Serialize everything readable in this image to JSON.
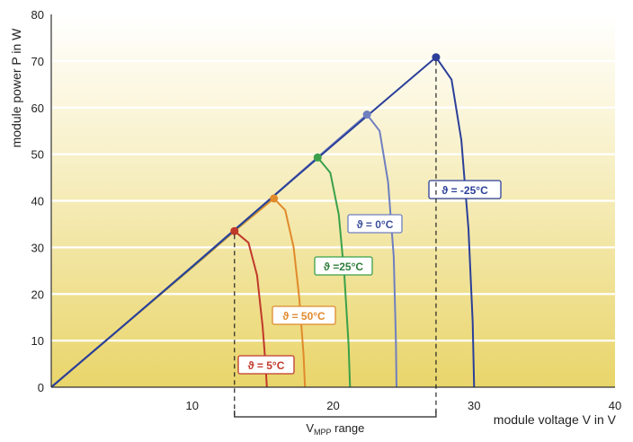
{
  "chart_data": {
    "type": "line",
    "title": "",
    "xlabel": "module voltage V in V",
    "ylabel": "module power P in W",
    "xlim": [
      0,
      40
    ],
    "ylim": [
      0,
      80
    ],
    "x_ticks": [
      10,
      20,
      30,
      40
    ],
    "y_ticks": [
      0,
      10,
      20,
      30,
      40,
      50,
      60,
      70,
      80
    ],
    "grid": "horizontal",
    "series": [
      {
        "name": "ϑ = 5°C",
        "label": "ϑ = 5°C",
        "color": "#c0392b",
        "label_color": "#c0392b",
        "label_border": "#c0392b",
        "label_fill": "#ffffff",
        "mpp": {
          "v": 13.0,
          "p": 33.5
        },
        "voc": 15.3,
        "points": [
          [
            0,
            0
          ],
          [
            4,
            10.3
          ],
          [
            8,
            20.6
          ],
          [
            11,
            28.3
          ],
          [
            13.0,
            33.5
          ],
          [
            14.0,
            31
          ],
          [
            14.6,
            24
          ],
          [
            15.0,
            13
          ],
          [
            15.2,
            5
          ],
          [
            15.3,
            0
          ]
        ]
      },
      {
        "name": "ϑ = 50°C",
        "label": "ϑ = 50°C",
        "color": "#e08a2c",
        "label_color": "#e08a2c",
        "label_border": "#e08a2c",
        "label_fill": "#ffffff",
        "mpp": {
          "v": 15.8,
          "p": 40.5
        },
        "voc": 18.0,
        "points": [
          [
            0,
            0
          ],
          [
            5,
            12.9
          ],
          [
            10,
            25.7
          ],
          [
            13,
            33.5
          ],
          [
            15.8,
            40.5
          ],
          [
            16.6,
            38
          ],
          [
            17.2,
            30
          ],
          [
            17.6,
            19
          ],
          [
            17.9,
            7
          ],
          [
            18.0,
            0
          ]
        ]
      },
      {
        "name": "ϑ =25°C",
        "label": "ϑ =25°C",
        "color": "#3aa04a",
        "label_color": "#2e7d3a",
        "label_border": "#3aa04a",
        "label_fill": "#ffffff",
        "mpp": {
          "v": 18.9,
          "p": 49.3
        },
        "voc": 21.2,
        "points": [
          [
            0,
            0
          ],
          [
            5,
            12.9
          ],
          [
            10,
            25.8
          ],
          [
            15,
            38.9
          ],
          [
            18.9,
            49.3
          ],
          [
            19.8,
            46
          ],
          [
            20.4,
            37
          ],
          [
            20.8,
            24
          ],
          [
            21.1,
            9
          ],
          [
            21.2,
            0
          ]
        ]
      },
      {
        "name": "ϑ = 0°C",
        "label": "ϑ = 0°C",
        "color": "#6f7fc0",
        "label_color": "#3b4f9a",
        "label_border": "#6f7fc0",
        "label_fill": "#ffffff",
        "mpp": {
          "v": 22.4,
          "p": 58.5
        },
        "voc": 24.5,
        "points": [
          [
            0,
            0
          ],
          [
            5,
            12.9
          ],
          [
            10,
            25.9
          ],
          [
            15,
            39
          ],
          [
            19,
            49.6
          ],
          [
            22.4,
            58.5
          ],
          [
            23.3,
            55
          ],
          [
            23.9,
            44
          ],
          [
            24.3,
            28
          ],
          [
            24.45,
            10
          ],
          [
            24.5,
            0
          ]
        ]
      },
      {
        "name": "ϑ = -25°C",
        "label": "ϑ = -25°C",
        "color": "#2b3f99",
        "label_color": "#2b3f99",
        "label_border": "#2b3f99",
        "label_fill": "#ffffff",
        "mpp": {
          "v": 27.3,
          "p": 70.8
        },
        "voc": 30.0,
        "points": [
          [
            0,
            0
          ],
          [
            5,
            12.9
          ],
          [
            10,
            25.9
          ],
          [
            15,
            39
          ],
          [
            20,
            52
          ],
          [
            24,
            62.3
          ],
          [
            27.3,
            70.8
          ],
          [
            28.4,
            66
          ],
          [
            29.1,
            53
          ],
          [
            29.6,
            34
          ],
          [
            29.9,
            14
          ],
          [
            30.0,
            0
          ]
        ]
      }
    ],
    "vmpp_range": {
      "label_main": "V",
      "label_sub": "MPP",
      "label_rest": " range",
      "from": 13.0,
      "to": 27.3
    },
    "background": {
      "top_color": "#ffffff",
      "bottom_color": "#e9d56a"
    }
  }
}
